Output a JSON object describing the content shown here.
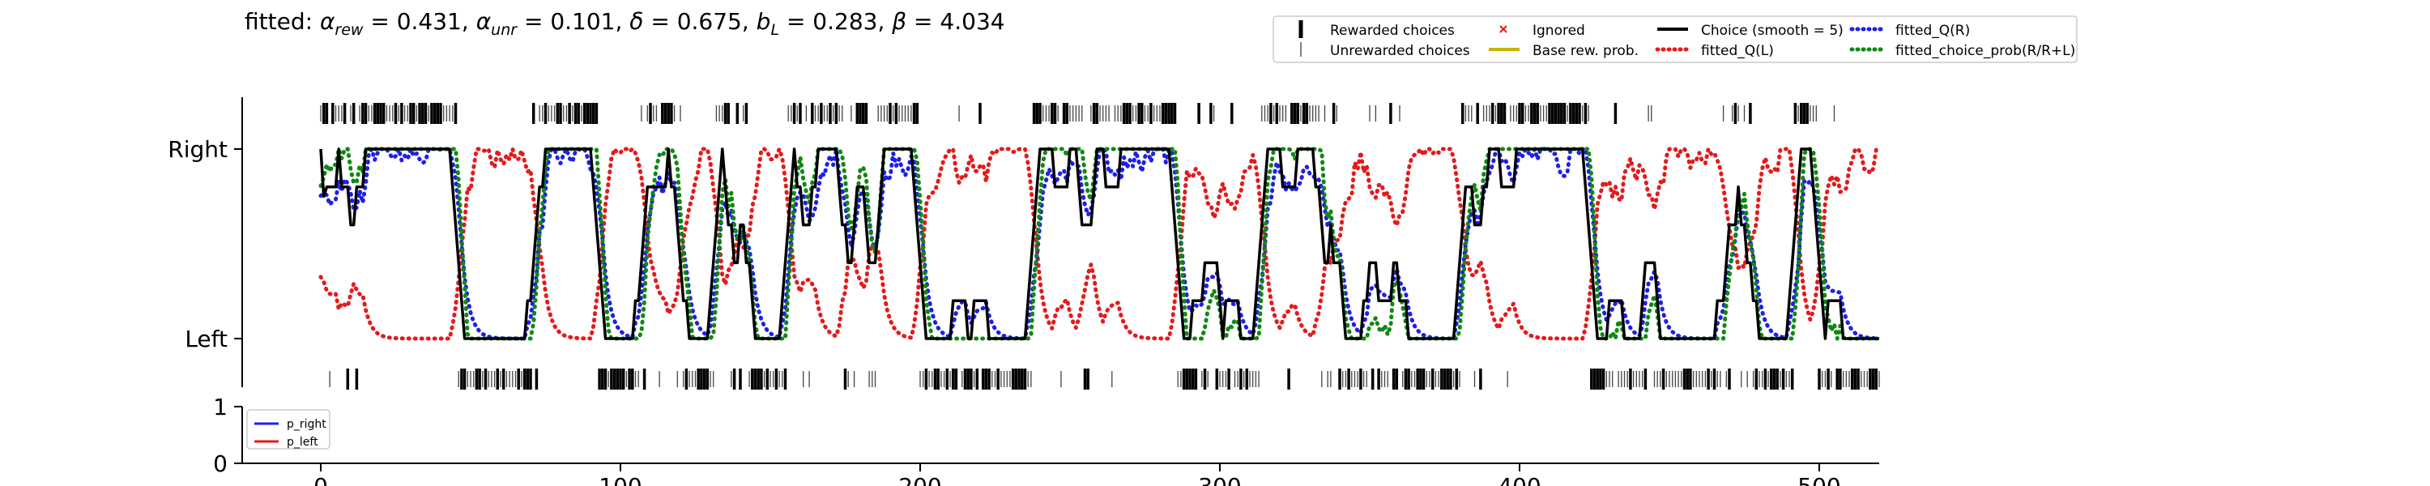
{
  "chart_data": {
    "type": "line",
    "title": "fitted: α_rew = 0.431, α_unr = 0.101, δ = 0.675, b_L = 0.283, β = 4.034",
    "title_parts": [
      {
        "text": "fitted: ",
        "style": "normal"
      },
      {
        "text": "α",
        "style": "italic"
      },
      {
        "text": "rew",
        "style": "sub"
      },
      {
        "text": " = 0.431, ",
        "style": "normal"
      },
      {
        "text": "α",
        "style": "italic"
      },
      {
        "text": "unr",
        "style": "sub"
      },
      {
        "text": " = 0.101, ",
        "style": "normal"
      },
      {
        "text": "δ",
        "style": "italic"
      },
      {
        "text": " = 0.675, ",
        "style": "normal"
      },
      {
        "text": "b",
        "style": "italic"
      },
      {
        "text": "L",
        "style": "sub"
      },
      {
        "text": " = 0.283, ",
        "style": "normal"
      },
      {
        "text": "β",
        "style": "italic"
      },
      {
        "text": " = 4.034",
        "style": "normal"
      }
    ],
    "x_range": [
      0,
      520
    ],
    "x_ticks": [
      0,
      100,
      200,
      300,
      400,
      500
    ],
    "top_panel": {
      "y_ticks": [
        {
          "value": 0,
          "label": "Left"
        },
        {
          "value": 1,
          "label": "Right"
        }
      ],
      "segments": [
        {
          "start": 0,
          "end": 45,
          "side": "right"
        },
        {
          "start": 46,
          "end": 70,
          "side": "left"
        },
        {
          "start": 71,
          "end": 92,
          "side": "right"
        },
        {
          "start": 93,
          "end": 108,
          "side": "left"
        },
        {
          "start": 109,
          "end": 118,
          "side": "right"
        },
        {
          "start": 119,
          "end": 130,
          "side": "left"
        },
        {
          "start": 131,
          "end": 145,
          "side": "mixed"
        },
        {
          "start": 146,
          "end": 155,
          "side": "left"
        },
        {
          "start": 156,
          "end": 173,
          "side": "right"
        },
        {
          "start": 174,
          "end": 185,
          "side": "mixed"
        },
        {
          "start": 186,
          "end": 200,
          "side": "right"
        },
        {
          "start": 201,
          "end": 237,
          "side": "left"
        },
        {
          "start": 238,
          "end": 285,
          "side": "right"
        },
        {
          "start": 286,
          "end": 313,
          "side": "left"
        },
        {
          "start": 314,
          "end": 333,
          "side": "right"
        },
        {
          "start": 334,
          "end": 380,
          "side": "left"
        },
        {
          "start": 381,
          "end": 424,
          "side": "right"
        },
        {
          "start": 425,
          "end": 465,
          "side": "left"
        },
        {
          "start": 466,
          "end": 475,
          "side": "mixed"
        },
        {
          "start": 476,
          "end": 490,
          "side": "left"
        },
        {
          "start": 491,
          "end": 499,
          "side": "right"
        },
        {
          "start": 500,
          "end": 520,
          "side": "left"
        }
      ],
      "series": [
        {
          "name": "Choice (smooth = 5)",
          "color": "#000000",
          "style": "solid"
        },
        {
          "name": "fitted_Q(L)",
          "color": "#e41a1c",
          "style": "dotted"
        },
        {
          "name": "fitted_Q(R)",
          "color": "#1f1fe8",
          "style": "dotted"
        },
        {
          "name": "fitted_choice_prob(R/R+L)",
          "color": "#118811",
          "style": "dotted"
        }
      ]
    },
    "bottom_panel": {
      "y_ticks": [
        {
          "value": 0,
          "label": "0"
        },
        {
          "value": 1,
          "label": "1"
        }
      ],
      "series": [
        {
          "name": "p_right",
          "color": "#1f1fe8"
        },
        {
          "name": "p_left",
          "color": "#e41a1c"
        }
      ]
    }
  },
  "legend_main": [
    {
      "label": "Rewarded choices",
      "marker": "thick-tick",
      "color": "#000000"
    },
    {
      "label": "Ignored",
      "marker": "x",
      "color": "#e41a1c"
    },
    {
      "label": "Choice (smooth = 5)",
      "marker": "line",
      "color": "#000000"
    },
    {
      "label": "fitted_Q(R)",
      "marker": "dotted",
      "color": "#1f1fe8"
    },
    {
      "label": "Unrewarded choices",
      "marker": "thin-tick",
      "color": "#555555"
    },
    {
      "label": "Base rew. prob.",
      "marker": "line",
      "color": "#c8b400"
    },
    {
      "label": "fitted_Q(L)",
      "marker": "dotted",
      "color": "#e41a1c"
    },
    {
      "label": "fitted_choice_prob(R/R+L)",
      "marker": "dotted",
      "color": "#118811"
    }
  ],
  "legend_bottom": [
    {
      "label": "p_right",
      "color": "#1f1fe8"
    },
    {
      "label": "p_left",
      "color": "#e41a1c"
    }
  ]
}
